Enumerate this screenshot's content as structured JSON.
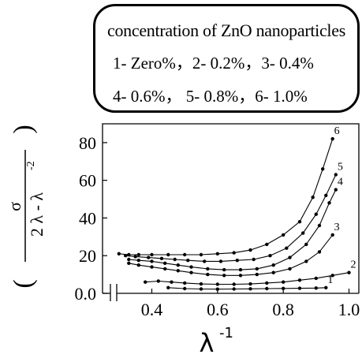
{
  "legend": {
    "title": "concentration of ZnO nanoparticles",
    "line1": "1- Zero%，2- 0.2%，3- 0.4%",
    "line2": "4- 0.6%，    5- 0.8%，6- 1.0%"
  },
  "chart_data": {
    "type": "line",
    "ylabel": {
      "bracket_left": "(",
      "bracket_right": ")",
      "numerator": "σ",
      "denominator": "2 λ - λ",
      "denominator_exp": "-2"
    },
    "xlabel": {
      "base": "λ",
      "exp": "-1"
    },
    "xlim": [
      0.25,
      1.03
    ],
    "ylim": [
      0,
      90
    ],
    "x_ticks": [
      0.4,
      0.6,
      0.8,
      1.0
    ],
    "x_tick_labels": [
      "0.4",
      "0.6",
      "0.8",
      "1.0"
    ],
    "y_ticks": [
      0,
      20,
      40,
      60,
      80
    ],
    "y_tick_labels": [
      "0.0",
      "20",
      "40",
      "60",
      "80"
    ],
    "axis_break": true,
    "grid": false,
    "series": [
      {
        "name": "1",
        "points": [
          [
            0.45,
            3
          ],
          [
            0.5,
            2.5
          ],
          [
            0.55,
            2.3
          ],
          [
            0.6,
            2.2
          ],
          [
            0.65,
            2.3
          ],
          [
            0.7,
            2.4
          ],
          [
            0.75,
            2.5
          ],
          [
            0.8,
            2.6
          ],
          [
            0.85,
            2.7
          ],
          [
            0.9,
            2.8
          ],
          [
            0.93,
            3
          ]
        ]
      },
      {
        "name": "2",
        "points": [
          [
            0.38,
            6
          ],
          [
            0.42,
            6.5
          ],
          [
            0.46,
            6
          ],
          [
            0.5,
            5.5
          ],
          [
            0.55,
            5
          ],
          [
            0.6,
            4.8
          ],
          [
            0.65,
            4.8
          ],
          [
            0.7,
            5
          ],
          [
            0.75,
            5.5
          ],
          [
            0.8,
            6
          ],
          [
            0.85,
            7
          ],
          [
            0.9,
            8
          ],
          [
            0.95,
            9.5
          ],
          [
            1.0,
            11
          ]
        ]
      },
      {
        "name": "3",
        "points": [
          [
            0.33,
            16
          ],
          [
            0.36,
            15
          ],
          [
            0.4,
            14
          ],
          [
            0.44,
            13
          ],
          [
            0.48,
            12
          ],
          [
            0.52,
            11
          ],
          [
            0.57,
            10
          ],
          [
            0.62,
            9.5
          ],
          [
            0.67,
            9.5
          ],
          [
            0.72,
            10
          ],
          [
            0.77,
            11
          ],
          [
            0.82,
            13
          ],
          [
            0.87,
            17
          ],
          [
            0.91,
            22
          ],
          [
            0.95,
            31
          ]
        ]
      },
      {
        "name": "4",
        "points": [
          [
            0.33,
            18
          ],
          [
            0.36,
            17.5
          ],
          [
            0.4,
            17
          ],
          [
            0.44,
            16
          ],
          [
            0.48,
            15
          ],
          [
            0.52,
            14
          ],
          [
            0.57,
            13
          ],
          [
            0.62,
            12.5
          ],
          [
            0.67,
            12.5
          ],
          [
            0.72,
            13
          ],
          [
            0.77,
            15
          ],
          [
            0.82,
            19
          ],
          [
            0.87,
            26
          ],
          [
            0.91,
            36
          ],
          [
            0.94,
            48
          ],
          [
            0.96,
            55
          ]
        ]
      },
      {
        "name": "5",
        "points": [
          [
            0.32,
            20
          ],
          [
            0.35,
            19.5
          ],
          [
            0.39,
            19
          ],
          [
            0.43,
            18.5
          ],
          [
            0.47,
            18
          ],
          [
            0.51,
            17.5
          ],
          [
            0.56,
            17
          ],
          [
            0.61,
            17
          ],
          [
            0.66,
            17.5
          ],
          [
            0.71,
            18
          ],
          [
            0.76,
            20
          ],
          [
            0.81,
            24
          ],
          [
            0.86,
            32
          ],
          [
            0.9,
            42
          ],
          [
            0.93,
            52
          ],
          [
            0.96,
            63
          ]
        ]
      },
      {
        "name": "6",
        "points": [
          [
            0.3,
            21
          ],
          [
            0.33,
            20.5
          ],
          [
            0.36,
            20.5
          ],
          [
            0.4,
            20.5
          ],
          [
            0.45,
            20.5
          ],
          [
            0.5,
            20.5
          ],
          [
            0.55,
            20.5
          ],
          [
            0.6,
            21
          ],
          [
            0.65,
            21.5
          ],
          [
            0.7,
            23
          ],
          [
            0.75,
            26
          ],
          [
            0.8,
            31
          ],
          [
            0.85,
            38
          ],
          [
            0.89,
            51
          ],
          [
            0.92,
            66
          ],
          [
            0.95,
            82
          ]
        ]
      }
    ]
  }
}
